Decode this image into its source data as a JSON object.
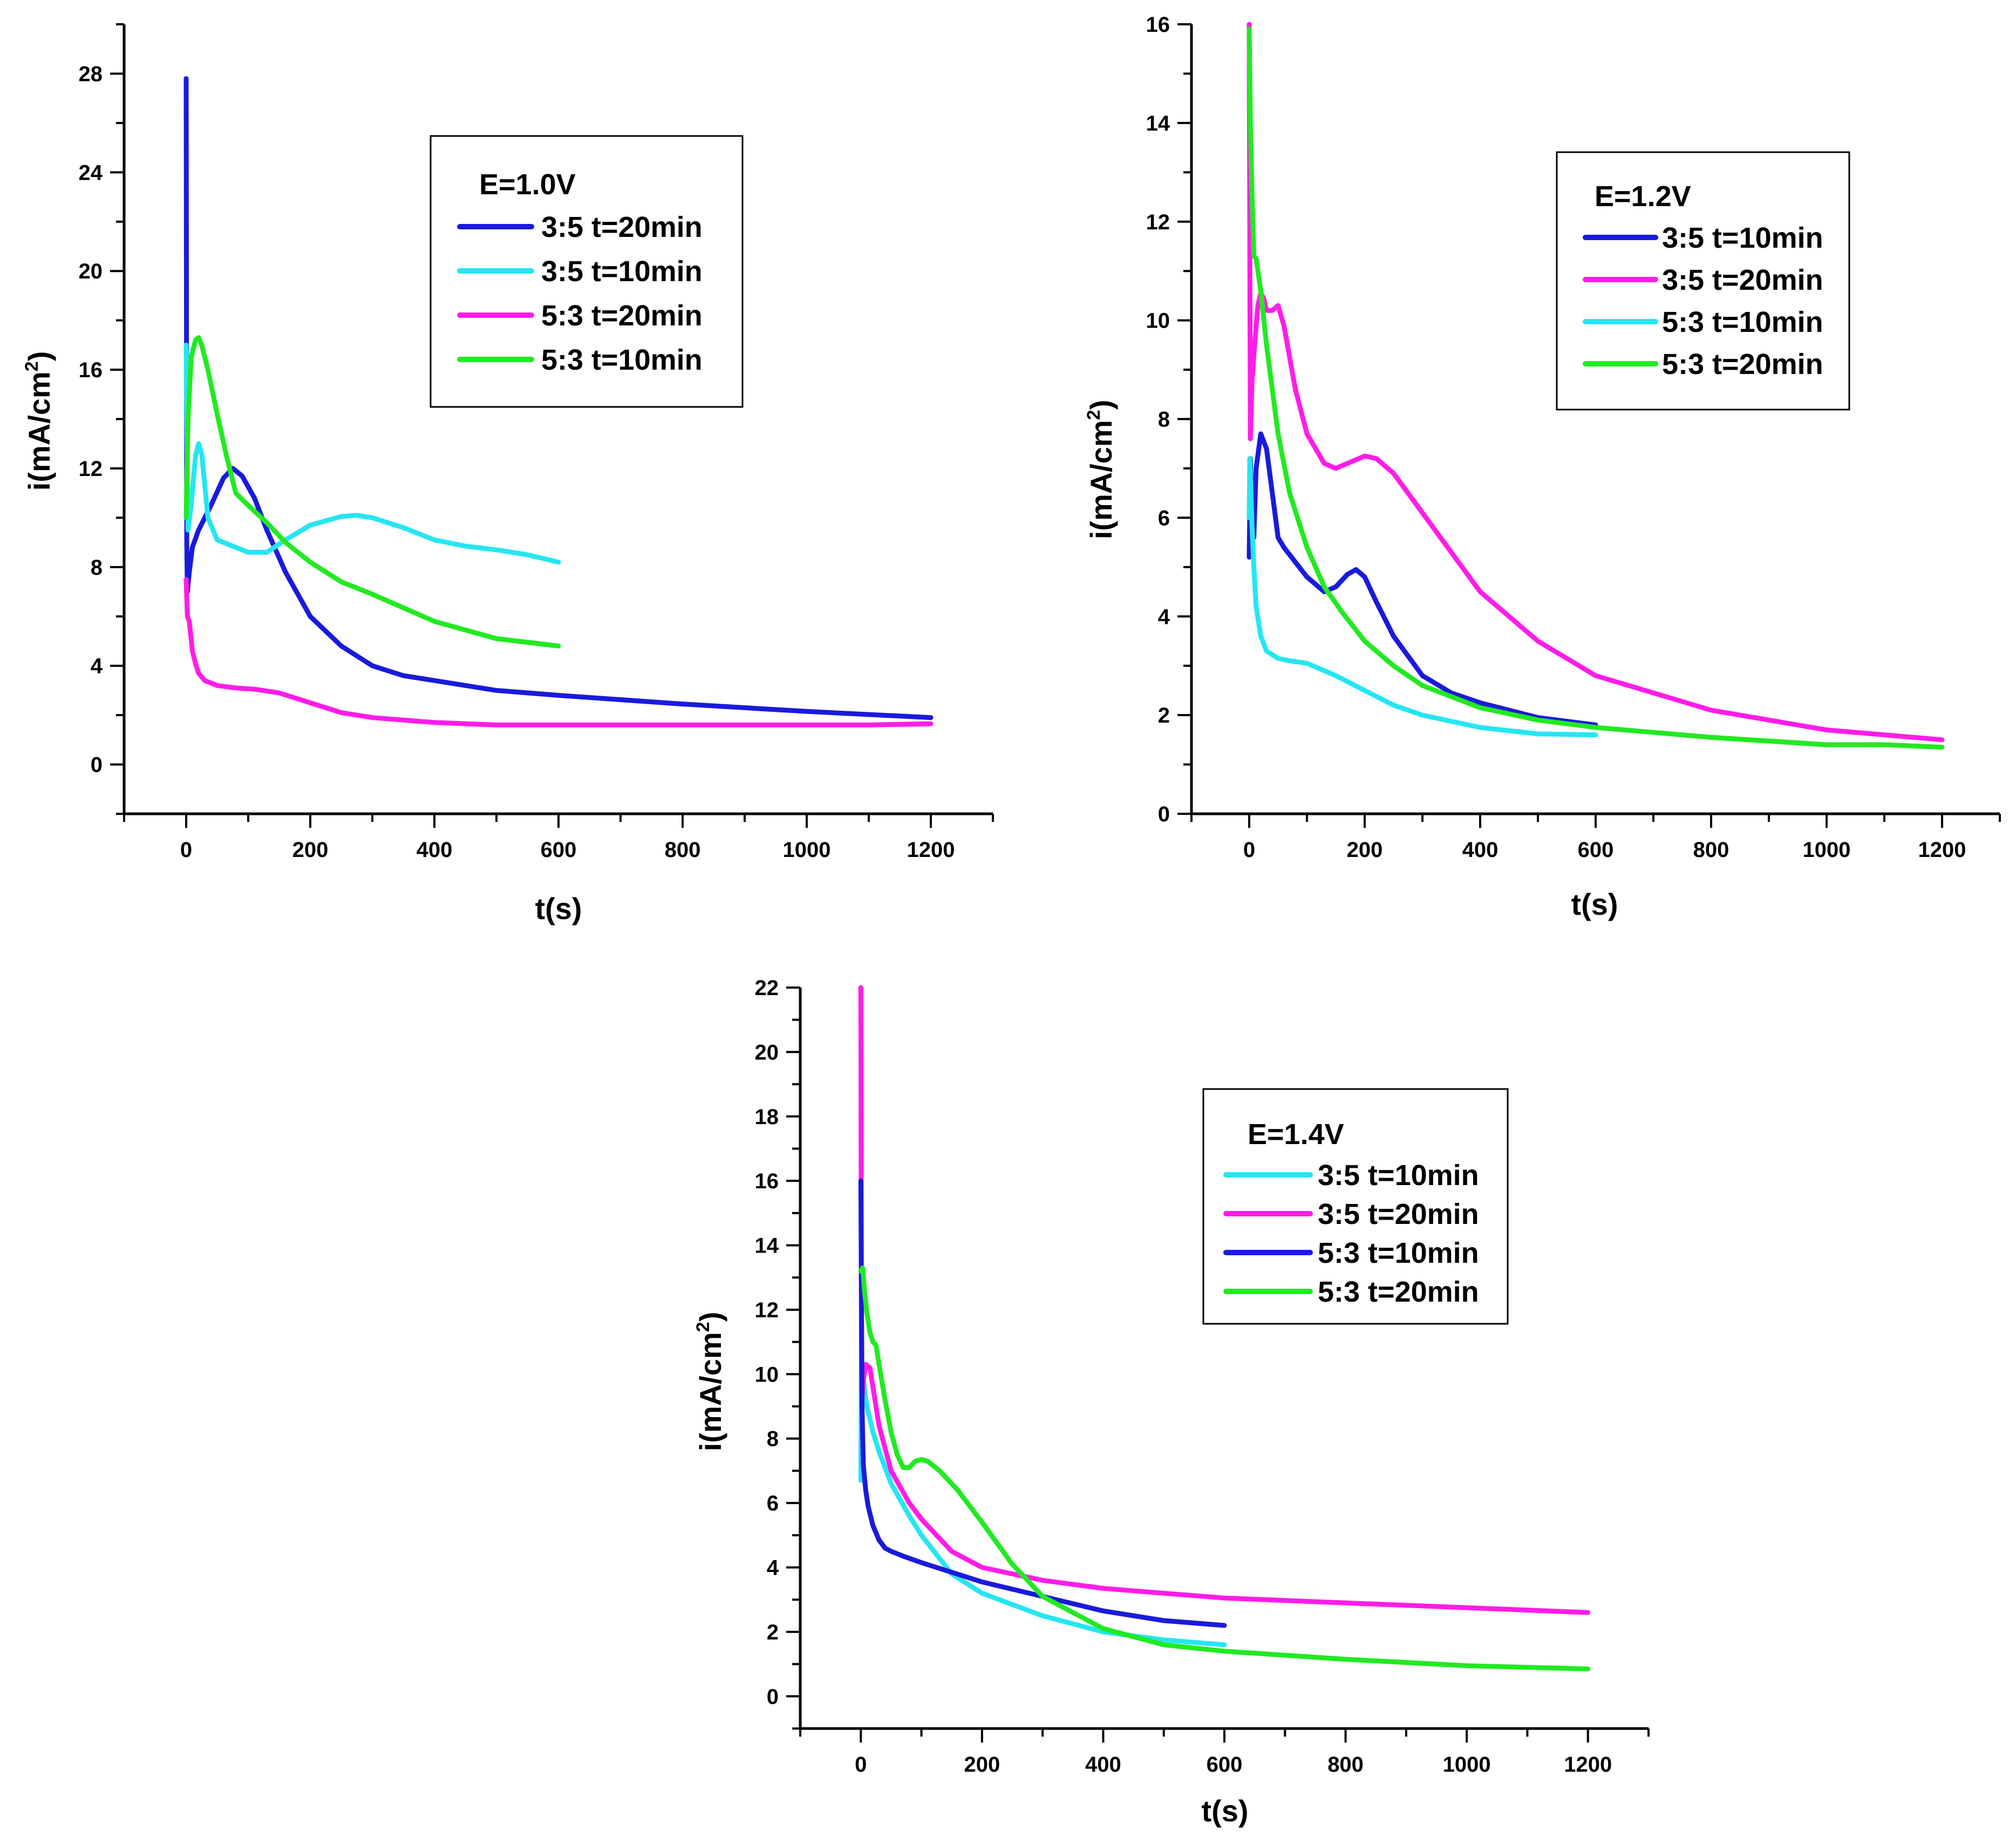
{
  "chart_data": [
    {
      "type": "line",
      "title": "",
      "xlabel": "t(s)",
      "ylabel": "i(mA/cm2)",
      "ylabel_main": "i(mA/cm",
      "ylabel_sup": "2",
      "ylabel_close": ")",
      "xlim": [
        -100,
        1300
      ],
      "ylim": [
        -2,
        30
      ],
      "xticks": [
        "0",
        "200",
        "400",
        "600",
        "800",
        "1000",
        "1200"
      ],
      "yticks": [
        "0",
        "4",
        "8",
        "12",
        "16",
        "20",
        "24",
        "28"
      ],
      "legend_title": "E=1.0V",
      "legend_position": "top-center",
      "series": [
        {
          "name": "3:5 t=20min",
          "color": "#1a1adc",
          "x": [
            0,
            0.5,
            1,
            2,
            5,
            10,
            20,
            40,
            60,
            75,
            90,
            110,
            130,
            160,
            200,
            250,
            300,
            350,
            400,
            500,
            600,
            800,
            1000,
            1200
          ],
          "y": [
            27.8,
            17,
            9,
            7,
            7.8,
            8.8,
            9.5,
            10.5,
            11.6,
            12,
            11.7,
            10.8,
            9.5,
            7.8,
            6.0,
            4.8,
            4.0,
            3.6,
            3.4,
            3.0,
            2.8,
            2.45,
            2.15,
            1.9
          ]
        },
        {
          "name": "3:5 t=10min",
          "color": "#25e6f2",
          "x": [
            0,
            3,
            8,
            15,
            20,
            25,
            35,
            50,
            70,
            100,
            130,
            160,
            200,
            250,
            275,
            300,
            350,
            400,
            450,
            500,
            550,
            600
          ],
          "y": [
            17,
            9.5,
            10.5,
            12.5,
            13.0,
            12.6,
            10,
            9.1,
            8.9,
            8.6,
            8.6,
            9.1,
            9.7,
            10.05,
            10.1,
            10.0,
            9.6,
            9.1,
            8.85,
            8.7,
            8.5,
            8.2
          ]
        },
        {
          "name": "5:3 t=20min",
          "color": "#ff1de8",
          "x": [
            0,
            2,
            5,
            10,
            15,
            20,
            30,
            50,
            80,
            110,
            150,
            200,
            250,
            300,
            400,
            500,
            600,
            700,
            800,
            900,
            1000,
            1100,
            1200
          ],
          "y": [
            7.5,
            6.0,
            5.8,
            4.6,
            4.1,
            3.7,
            3.4,
            3.2,
            3.1,
            3.05,
            2.9,
            2.5,
            2.1,
            1.9,
            1.7,
            1.6,
            1.6,
            1.6,
            1.6,
            1.6,
            1.6,
            1.6,
            1.65
          ]
        },
        {
          "name": "5:3 t=10min",
          "color": "#21ea21",
          "x": [
            0,
            3,
            8,
            15,
            20,
            25,
            35,
            50,
            65,
            80,
            100,
            130,
            160,
            200,
            250,
            300,
            400,
            500,
            600
          ],
          "y": [
            10,
            14,
            16.5,
            17.2,
            17.3,
            17.0,
            16,
            14.2,
            12.5,
            11.0,
            10.5,
            9.8,
            9.0,
            8.2,
            7.4,
            6.9,
            5.8,
            5.1,
            4.8
          ]
        }
      ]
    },
    {
      "type": "line",
      "title": "",
      "xlabel": "t(s)",
      "ylabel": "i(mA/cm2)",
      "ylabel_main": "i(mA/cm",
      "ylabel_sup": "2",
      "ylabel_close": ")",
      "xlim": [
        -100,
        1300
      ],
      "ylim": [
        0,
        16
      ],
      "xticks": [
        "0",
        "200",
        "400",
        "600",
        "800",
        "1000",
        "1200"
      ],
      "yticks": [
        "0",
        "2",
        "4",
        "6",
        "8",
        "10",
        "12",
        "14",
        "16"
      ],
      "legend_title": "E=1.2V",
      "legend_position": "top-right",
      "series": [
        {
          "name": "3:5 t=10min",
          "color": "#1a1adc",
          "x": [
            0,
            2,
            5,
            8,
            12,
            20,
            30,
            40,
            50,
            60,
            80,
            100,
            130,
            150,
            170,
            185,
            200,
            220,
            250,
            300,
            350,
            400,
            500,
            600
          ],
          "y": [
            5.2,
            7.2,
            6.0,
            5.6,
            7.0,
            7.7,
            7.4,
            6.5,
            5.6,
            5.4,
            5.1,
            4.8,
            4.5,
            4.6,
            4.85,
            4.95,
            4.8,
            4.3,
            3.6,
            2.8,
            2.45,
            2.25,
            1.95,
            1.8
          ]
        },
        {
          "name": "3:5 t=20min",
          "color": "#ff1de8",
          "x": [
            0,
            2,
            5,
            10,
            15,
            20,
            25,
            30,
            40,
            50,
            60,
            80,
            100,
            130,
            150,
            180,
            200,
            220,
            250,
            300,
            400,
            500,
            600,
            800,
            1000,
            1200
          ],
          "y": [
            16,
            7.6,
            8.8,
            9.6,
            10.3,
            10.55,
            10.45,
            10.2,
            10.2,
            10.3,
            9.9,
            8.6,
            7.7,
            7.1,
            7.0,
            7.15,
            7.25,
            7.2,
            6.9,
            6.1,
            4.5,
            3.5,
            2.8,
            2.1,
            1.7,
            1.5
          ]
        },
        {
          "name": "5:3 t=10min",
          "color": "#25e6f2",
          "x": [
            0,
            1,
            3,
            5,
            8,
            12,
            20,
            30,
            50,
            70,
            100,
            120,
            150,
            200,
            250,
            300,
            400,
            500,
            600
          ],
          "y": [
            6.0,
            7.2,
            6.5,
            5.8,
            5.0,
            4.2,
            3.6,
            3.3,
            3.15,
            3.1,
            3.05,
            2.95,
            2.8,
            2.5,
            2.2,
            2.0,
            1.75,
            1.62,
            1.6
          ]
        },
        {
          "name": "5:3 t=20min",
          "color": "#21ea21",
          "x": [
            0,
            2,
            5,
            8,
            12,
            20,
            30,
            50,
            70,
            100,
            130,
            160,
            200,
            250,
            300,
            400,
            500,
            600,
            800,
            1000,
            1100,
            1200
          ],
          "y": [
            15.9,
            14,
            12.5,
            11.3,
            11.25,
            10.6,
            9.5,
            7.7,
            6.5,
            5.4,
            4.6,
            4.1,
            3.5,
            3.0,
            2.6,
            2.15,
            1.9,
            1.75,
            1.55,
            1.4,
            1.4,
            1.35
          ]
        }
      ]
    },
    {
      "type": "line",
      "title": "",
      "xlabel": "t(s)",
      "ylabel": "i(mA/cm2)",
      "ylabel_main": "i(mA/cm",
      "ylabel_sup": "2",
      "ylabel_close": ")",
      "xlim": [
        -100,
        1300
      ],
      "ylim": [
        -1,
        22
      ],
      "xticks": [
        "0",
        "200",
        "400",
        "600",
        "800",
        "1000",
        "1200"
      ],
      "yticks": [
        "0",
        "2",
        "4",
        "6",
        "8",
        "10",
        "12",
        "14",
        "16",
        "18",
        "20",
        "22"
      ],
      "legend_title": "E=1.4V",
      "legend_position": "top-right",
      "series": [
        {
          "name": "3:5 t=10min",
          "color": "#25e6f2",
          "x": [
            0,
            1,
            3,
            6,
            10,
            15,
            20,
            30,
            50,
            80,
            100,
            150,
            200,
            300,
            400,
            500,
            600
          ],
          "y": [
            6.7,
            10.5,
            10.2,
            9.5,
            9.0,
            8.6,
            8.2,
            7.6,
            6.6,
            5.6,
            5.0,
            3.8,
            3.2,
            2.5,
            2.0,
            1.75,
            1.6
          ]
        },
        {
          "name": "3:5 t=20min",
          "color": "#ff1de8",
          "x": [
            0,
            1,
            2,
            4,
            8,
            15,
            20,
            30,
            50,
            80,
            100,
            150,
            200,
            300,
            400,
            500,
            600,
            800,
            1000,
            1200
          ],
          "y": [
            22,
            11,
            9.2,
            9.8,
            10.3,
            10.2,
            9.6,
            8.4,
            7.0,
            6.0,
            5.5,
            4.5,
            4.0,
            3.6,
            3.35,
            3.2,
            3.05,
            2.9,
            2.75,
            2.6
          ]
        },
        {
          "name": "5:3 t=10min",
          "color": "#1a1adc",
          "x": [
            0,
            1,
            2,
            4,
            8,
            12,
            20,
            30,
            40,
            50,
            70,
            100,
            150,
            200,
            300,
            400,
            500,
            600
          ],
          "y": [
            16,
            12.5,
            9.0,
            7.2,
            6.4,
            5.9,
            5.3,
            4.85,
            4.6,
            4.5,
            4.35,
            4.15,
            3.85,
            3.55,
            3.1,
            2.65,
            2.35,
            2.2
          ]
        },
        {
          "name": "5:3 t=20min",
          "color": "#21ea21",
          "x": [
            0,
            3,
            6,
            10,
            15,
            20,
            25,
            30,
            40,
            50,
            60,
            70,
            80,
            90,
            100,
            110,
            130,
            160,
            200,
            250,
            300,
            400,
            500,
            600,
            800,
            1000,
            1200
          ],
          "y": [
            13.2,
            13.3,
            12.6,
            11.9,
            11.3,
            11.0,
            10.9,
            10.3,
            9.2,
            8.2,
            7.5,
            7.1,
            7.1,
            7.3,
            7.35,
            7.3,
            7.0,
            6.4,
            5.4,
            4.1,
            3.1,
            2.1,
            1.6,
            1.4,
            1.15,
            0.95,
            0.85
          ]
        }
      ]
    }
  ]
}
